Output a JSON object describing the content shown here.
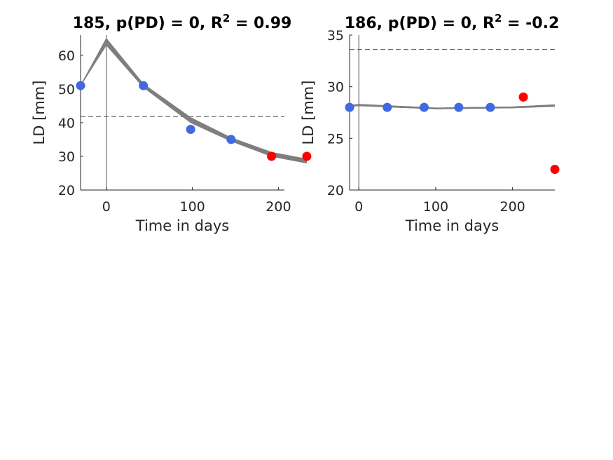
{
  "chart_data": [
    {
      "type": "scatter",
      "title_main": "185, p(PD) = 0, R",
      "title_sup": "2",
      "title_tail": " = 0.99",
      "xlabel": "Time in days",
      "ylabel": "LD [mm]",
      "xlim": [
        -30,
        207
      ],
      "ylim": [
        20,
        66
      ],
      "xticks": [
        0,
        100,
        200
      ],
      "yticks": [
        20,
        30,
        40,
        50,
        60
      ],
      "vertical_line_x": 0,
      "threshold_y": 41.8,
      "grid": false,
      "colors": {
        "fitted": "#4169e1",
        "excluded": "#ff0000",
        "curve": "#7f7f7f",
        "ref": "#555555"
      },
      "points_fitted": [
        {
          "x": -30,
          "y": 51
        },
        {
          "x": 43,
          "y": 51
        },
        {
          "x": 98,
          "y": 38
        },
        {
          "x": 145,
          "y": 35
        }
      ],
      "points_excluded": [
        {
          "x": 192,
          "y": 30
        },
        {
          "x": 233,
          "y": 30
        }
      ],
      "curve_bands": [
        {
          "x": [
            -30,
            0,
            43,
            98,
            145,
            192,
            233
          ],
          "y": [
            51,
            65,
            51.5,
            41.5,
            35.5,
            31.2,
            29.2
          ]
        },
        {
          "x": [
            -30,
            0,
            43,
            98,
            145,
            192,
            233
          ],
          "y": [
            51,
            63,
            50.5,
            40.0,
            34.5,
            30.0,
            28.0
          ]
        }
      ]
    },
    {
      "type": "scatter",
      "title_main": "186, p(PD) = 0, R",
      "title_sup": "2",
      "title_tail": " = -0.2",
      "xlabel": "Time in days",
      "ylabel": "LD [mm]",
      "xlim": [
        -12,
        255
      ],
      "ylim": [
        20,
        35
      ],
      "xticks": [
        0,
        100,
        200
      ],
      "yticks": [
        20,
        25,
        30,
        35
      ],
      "vertical_line_x": 0,
      "threshold_y": 33.6,
      "grid": false,
      "colors": {
        "fitted": "#4169e1",
        "excluded": "#ff0000",
        "curve": "#7f7f7f",
        "ref": "#555555"
      },
      "points_fitted": [
        {
          "x": -12,
          "y": 28
        },
        {
          "x": 37,
          "y": 28
        },
        {
          "x": 85,
          "y": 28
        },
        {
          "x": 130,
          "y": 28
        },
        {
          "x": 171,
          "y": 28
        }
      ],
      "points_excluded": [
        {
          "x": 214,
          "y": 29
        },
        {
          "x": 255,
          "y": 22
        }
      ],
      "curve_bands": [
        {
          "x": [
            -12,
            0,
            100,
            200,
            255
          ],
          "y": [
            28.2,
            28.3,
            27.95,
            28.05,
            28.25
          ]
        },
        {
          "x": [
            -12,
            0,
            100,
            200,
            255
          ],
          "y": [
            28.1,
            28.15,
            27.85,
            27.95,
            28.1
          ]
        }
      ]
    }
  ]
}
